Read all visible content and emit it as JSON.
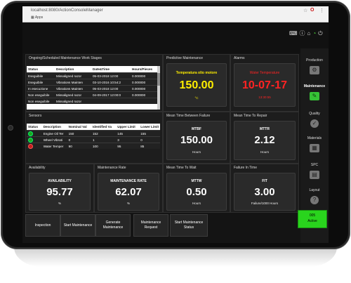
{
  "browser": {
    "url": "localhost:8080/ActionConsoleManager",
    "apps_label": "Apps"
  },
  "panels": {
    "maintenance": {
      "title": "Ongoing/Scheduled Maintenance Work Stages",
      "columns": [
        "Status",
        "Description",
        "Date&Time",
        "Hours/Pieces"
      ],
      "rows": [
        {
          "status": "Eseguibile",
          "description": "Missaligned razor",
          "datetime": "05-03-2018 12:00",
          "hours": "0.000000"
        },
        {
          "status": "Eseguibile",
          "description": "Vibrations Mainten",
          "datetime": "03-10-2016 10:54:2",
          "hours": "0.000000"
        },
        {
          "status": "In esecuzione",
          "description": "Vibrations Mainten",
          "datetime": "05-03-2018 12:00",
          "hours": "0.000000"
        },
        {
          "status": "Non eseguibile",
          "description": "Missaligned razor",
          "datetime": "04-09-2017 12:00:0",
          "hours": "0.000000"
        },
        {
          "status": "Non eseguibile",
          "description": "Missaligned razor",
          "datetime": "",
          "hours": ""
        }
      ]
    },
    "predictive": {
      "title": "Predictive Maintenance",
      "name": "Temperatura olio motore",
      "value": "150.00",
      "unit": "°C",
      "value_color": "#ffee00",
      "name_color": "#ffee00"
    },
    "alarms": {
      "title": "Alarms",
      "name": "Water Temperature",
      "date": "10-07-17",
      "time": "13:30:55",
      "color": "#ff2323"
    },
    "sensors": {
      "title": "Sensors",
      "columns": [
        "Status",
        "Description",
        "Nominal Val",
        "Identified Va",
        "Upper Limit",
        "Lower Limit"
      ],
      "rows": [
        {
          "status": "ok",
          "description": "Engine Oil Ter",
          "nominal": "150",
          "identified": "152",
          "upper": "145",
          "lower": "155"
        },
        {
          "status": "ok",
          "description": "Wheel Vibrati",
          "nominal": "0",
          "identified": "1",
          "upper": "3",
          "lower": "0"
        },
        {
          "status": "error",
          "description": "Water Temper",
          "nominal": "90",
          "identified": "100",
          "upper": "95",
          "lower": "85"
        }
      ]
    },
    "mtbf": {
      "title": "Mean Time Between Failure",
      "name": "MTBF",
      "value": "150.00",
      "unit": "Hours"
    },
    "mttr": {
      "title": "Mean Time To Repair",
      "name": "MTTR",
      "value": "2.12",
      "unit": "Hours"
    },
    "availability": {
      "title": "Availability",
      "name": "AVAILABILITY",
      "value": "95.77",
      "unit": "%"
    },
    "maint_rate": {
      "title": "Maintenance Rate",
      "name": "MAINTENANCE RATE",
      "value": "62.07",
      "unit": "%"
    },
    "mttw": {
      "title": "Mean Time To Wait",
      "name": "MTTW",
      "value": "0.50",
      "unit": "Hours"
    },
    "fit": {
      "title": "Failure In Time",
      "name": "FIT",
      "value": "3.00",
      "unit": "Failure/1000 Hours"
    }
  },
  "sidebar": {
    "items": [
      {
        "label": "Production",
        "icon": "gear-icon"
      },
      {
        "label": "Maintenance",
        "icon": "wrench-icon"
      },
      {
        "label": "Quality",
        "icon": "check-icon"
      },
      {
        "label": "Materials",
        "icon": "boxes-icon"
      },
      {
        "label": "SPC",
        "icon": "chart-icon"
      },
      {
        "label": "Layout",
        "icon": "help-icon"
      }
    ]
  },
  "buttons": {
    "inspection": "Inspection",
    "start_maintenance": "Start Maintenance",
    "generate_maintenance": "Generate Maintenance",
    "maintenance_request": "Maintenance Request",
    "start_maintenance_status": "Start Maintenance Status"
  },
  "status_badge": {
    "code": "005",
    "label": "Active",
    "color": "#29d41d"
  }
}
